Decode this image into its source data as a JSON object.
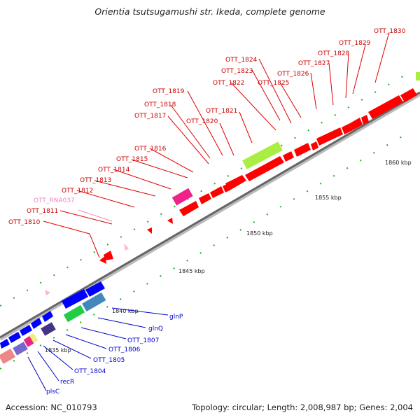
{
  "title": "Orientia tsutsugamushi str. Ikeda, complete genome",
  "footer": {
    "accession": "Accession: NC_010793",
    "summary": "Topology: circular; Length: 2,008,987 bp; Genes: 2,004"
  },
  "colors": {
    "cds_forward": "#ff0000",
    "cds_reverse": "#0000ff",
    "rna": "#ffb6c1",
    "highlight_green": "#aaee44",
    "magenta": "#ee2288",
    "label_forward": "#cc0000",
    "label_reverse": "#0000cc",
    "label_rna": "#ee88bb"
  },
  "ticks": [
    "1835 kbp",
    "1840 kbp",
    "1845 kbp",
    "1850 kbp",
    "1855 kbp",
    "1860 kbp"
  ],
  "forward_labels": [
    "OTT_1810",
    "OTT_RNA037",
    "OTT_1811",
    "OTT_1812",
    "OTT_1813",
    "OTT_1814",
    "OTT_1815",
    "OTT_1816",
    "OTT_1817",
    "OTT_1818",
    "OTT_1819",
    "OTT_1820",
    "OTT_1821",
    "OTT_1822",
    "OTT_1823",
    "OTT_1824",
    "OTT_1825",
    "OTT_1826",
    "OTT_1827",
    "OTT_1828",
    "OTT_1829",
    "OTT_1830"
  ],
  "reverse_labels": [
    "glnP",
    "glnQ",
    "OTT_1807",
    "OTT_1806",
    "OTT_1805",
    "OTT_1804",
    "recR",
    "plsC"
  ]
}
